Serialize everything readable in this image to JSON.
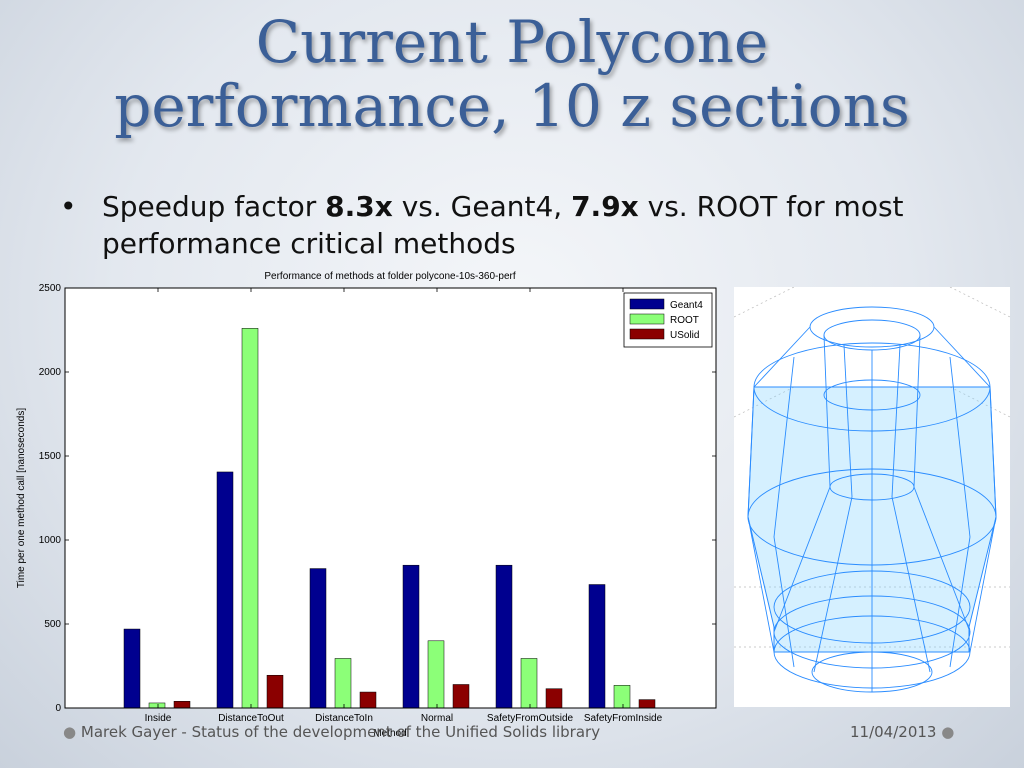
{
  "slide": {
    "title_line1": "Current Polycone",
    "title_line2": "performance, 10 z sections",
    "bullet": {
      "dot": "•",
      "prefix": "Speedup factor ",
      "bold1": "8.3x",
      "mid": " vs. Geant4, ",
      "bold2": "7.9x",
      "suffix": " vs. ROOT for most performance critical methods"
    },
    "footer_left": "Marek Gayer - Status of the development of the Unified Solids library",
    "footer_right": "11/04/2013",
    "footer_dot": "●"
  },
  "colors": {
    "title": "#3b5f97",
    "geant4": "#00008f",
    "root": "#8cff78",
    "usolid": "#8b0000",
    "wire": "#2a8cff"
  },
  "chart_data": {
    "type": "bar",
    "title": "Performance of methods at folder polycone-10s-360-perf",
    "xlabel": "Method",
    "ylabel": "Time per one method call [nanoseconds]",
    "ylim": [
      0,
      2500
    ],
    "yticks": [
      0,
      500,
      1000,
      1500,
      2000,
      2500
    ],
    "categories": [
      "Inside",
      "DistanceToOut",
      "DistanceToIn",
      "Normal",
      "SafetyFromOutside",
      "SafetyFromInside"
    ],
    "series": [
      {
        "name": "Geant4",
        "values": [
          470,
          1405,
          830,
          850,
          850,
          735
        ]
      },
      {
        "name": "ROOT",
        "values": [
          30,
          2260,
          295,
          400,
          295,
          135
        ]
      },
      {
        "name": "USolid",
        "values": [
          40,
          195,
          95,
          140,
          115,
          50
        ]
      }
    ],
    "legend": "top-right",
    "grid": false
  },
  "image": {
    "alt_icon": "polycone-wireframe-icon"
  }
}
